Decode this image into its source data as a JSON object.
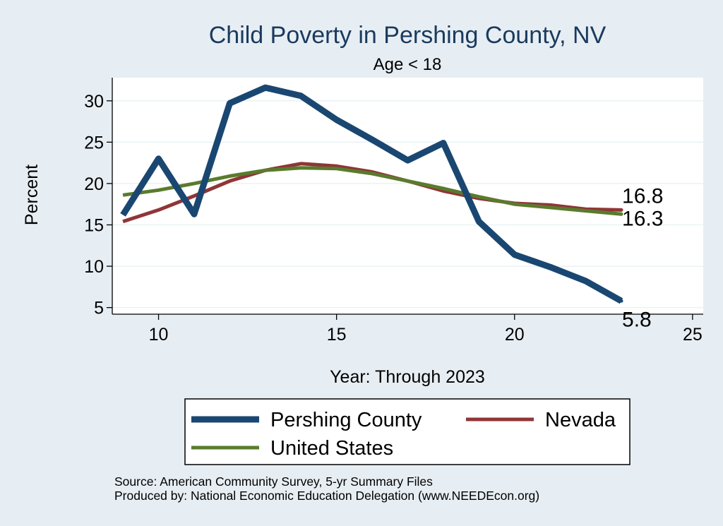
{
  "chart_data": {
    "type": "line",
    "title": "Child Poverty in Pershing County, NV",
    "subtitle": "Age < 18",
    "xlabel": "Year: Through 2023",
    "ylabel": "Percent",
    "xlim": [
      8.7,
      25.3
    ],
    "ylim": [
      4.2,
      32.8
    ],
    "xticks": [
      10,
      15,
      20,
      25
    ],
    "yticks": [
      5,
      10,
      15,
      20,
      25,
      30
    ],
    "grid": true,
    "series": [
      {
        "name": "Pershing County",
        "color": "#1a4771",
        "x": [
          9,
          10,
          11,
          12,
          13,
          14,
          15,
          16,
          17,
          18,
          19,
          20,
          21,
          22,
          23
        ],
        "values": [
          16.2,
          23.0,
          16.3,
          29.7,
          31.6,
          30.6,
          27.7,
          25.3,
          22.8,
          24.9,
          15.4,
          11.4,
          9.9,
          8.2,
          5.8
        ],
        "end_label": "5.8"
      },
      {
        "name": "Nevada",
        "color": "#903537",
        "x": [
          9,
          10,
          11,
          12,
          13,
          14,
          15,
          16,
          17,
          18,
          19,
          20,
          21,
          22,
          23
        ],
        "values": [
          15.4,
          16.8,
          18.5,
          20.3,
          21.6,
          22.4,
          22.1,
          21.4,
          20.3,
          19.1,
          18.2,
          17.6,
          17.4,
          16.9,
          16.8
        ],
        "end_label": "16.8"
      },
      {
        "name": "United States",
        "color": "#5a7b2d",
        "x": [
          9,
          10,
          11,
          12,
          13,
          14,
          15,
          16,
          17,
          18,
          19,
          20,
          21,
          22,
          23
        ],
        "values": [
          18.6,
          19.2,
          20.0,
          20.9,
          21.6,
          21.9,
          21.8,
          21.2,
          20.3,
          19.4,
          18.4,
          17.5,
          17.1,
          16.7,
          16.3
        ],
        "end_label": "16.3"
      }
    ],
    "legend": {
      "placement": "bottom",
      "entries": [
        "Pershing County",
        "Nevada",
        "United States"
      ]
    },
    "source": "Source: American Community Survey, 5-yr Summary Files",
    "producer": "Produced by: National Economic Education Delegation (www.NEEDEcon.org)"
  }
}
